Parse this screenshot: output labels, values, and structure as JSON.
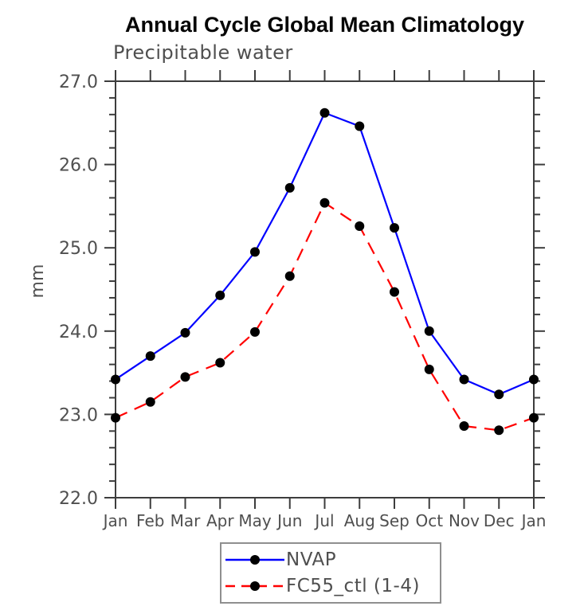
{
  "title": "Annual Cycle Global Mean Climatology",
  "subtitle": "Precipitable water",
  "y_axis_label": "mm",
  "colors": {
    "nvap_line": "#0000ff",
    "fc55_line": "#ff0000",
    "marker": "#000000",
    "axis": "#3d3d3d",
    "tick_text": "#4f4f4f",
    "title_text": "#050505",
    "legend_border": "#8f8f8f"
  },
  "chart_data": {
    "type": "line",
    "title": "Annual Cycle Global Mean Climatology",
    "subtitle": "Precipitable water",
    "xlabel": "",
    "ylabel": "mm",
    "categories": [
      "Jan",
      "Feb",
      "Mar",
      "Apr",
      "May",
      "Jun",
      "Jul",
      "Aug",
      "Sep",
      "Oct",
      "Nov",
      "Dec",
      "Jan"
    ],
    "ylim": [
      22.0,
      27.0
    ],
    "y_major_step": 1.0,
    "y_minor_step": 0.2,
    "y_tick_labels": [
      "22.0",
      "23.0",
      "24.0",
      "25.0",
      "26.0",
      "27.0"
    ],
    "grid": false,
    "legend_position": "bottom-center",
    "series": [
      {
        "name": "NVAP",
        "color": "#0000ff",
        "style": "solid",
        "marker": "circle",
        "marker_color": "#000000",
        "values": [
          23.42,
          23.7,
          23.98,
          24.43,
          24.95,
          25.72,
          26.62,
          26.46,
          25.24,
          24.0,
          23.42,
          23.24,
          23.42
        ]
      },
      {
        "name": "FC55_ctl (1-4)",
        "color": "#ff0000",
        "style": "dashed",
        "marker": "circle",
        "marker_color": "#000000",
        "values": [
          22.96,
          23.15,
          23.45,
          23.62,
          23.99,
          24.66,
          25.54,
          25.26,
          24.47,
          23.54,
          22.86,
          22.81,
          22.96
        ]
      }
    ]
  },
  "legend": {
    "items": [
      {
        "label": "NVAP"
      },
      {
        "label": "FC55_ctl (1-4)"
      }
    ]
  }
}
